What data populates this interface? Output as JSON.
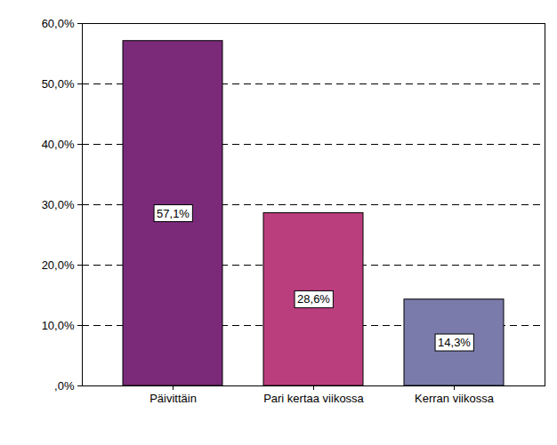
{
  "chart_data": {
    "type": "bar",
    "categories": [
      "Päivittäin",
      "Pari kertaa viikossa",
      "Kerran viikossa"
    ],
    "values": [
      57.1,
      28.6,
      14.3
    ],
    "value_labels": [
      "57,1%",
      "28,6%",
      "14,3%"
    ],
    "colors": [
      "#7b2a7a",
      "#ba3e7e",
      "#7a7baa"
    ],
    "ylim": [
      0,
      60
    ],
    "yticks": [
      {
        "value": 0,
        "label": ",0%"
      },
      {
        "value": 10,
        "label": "10,0%"
      },
      {
        "value": 20,
        "label": "20,0%"
      },
      {
        "value": 30,
        "label": "30,0%"
      },
      {
        "value": 40,
        "label": "40,0%"
      },
      {
        "value": 50,
        "label": "50,0%"
      },
      {
        "value": 60,
        "label": "60,0%"
      }
    ],
    "grid": true,
    "data_labels": true
  }
}
